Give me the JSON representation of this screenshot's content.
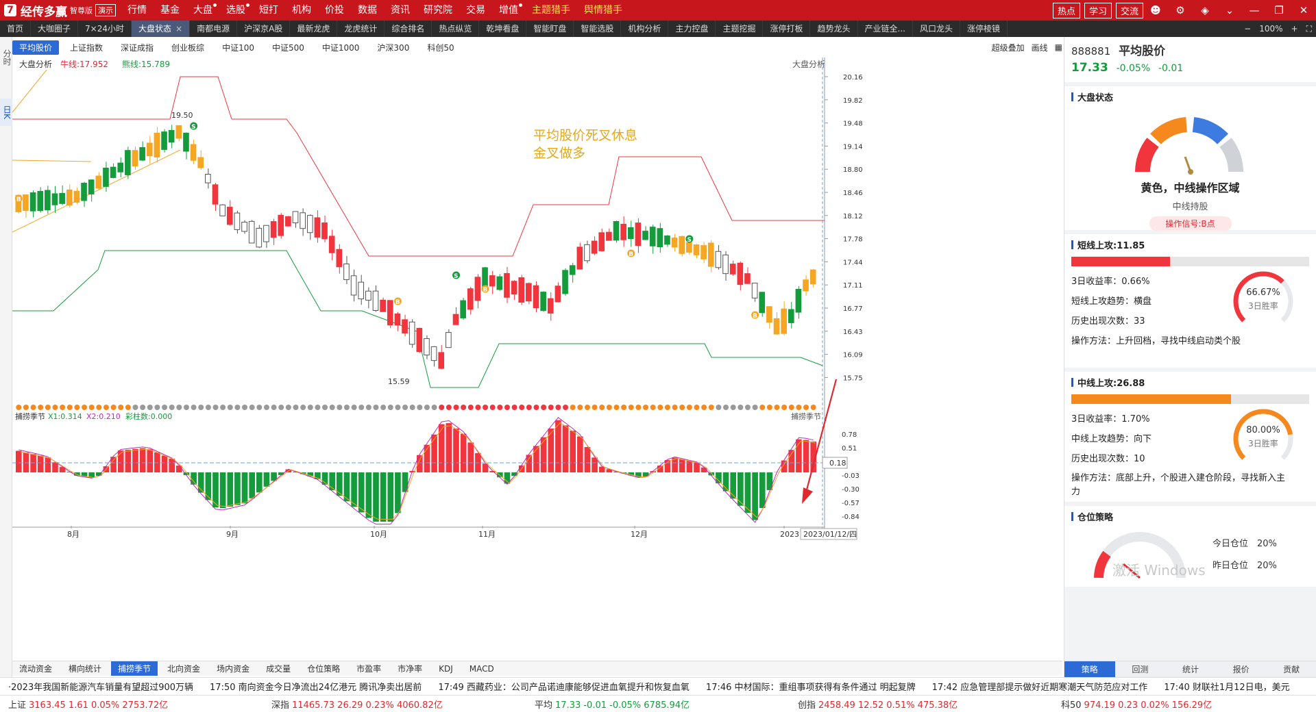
{
  "app": {
    "logo_text": "经传多赢",
    "edition": "智尊版",
    "demo_badge": "演示"
  },
  "menu": [
    "行情",
    "基金",
    "大盘",
    "选股",
    "短打",
    "机构",
    "价投",
    "数据",
    "资讯",
    "研究院",
    "交易",
    "增值"
  ],
  "menu_highlight": [
    "主题猎手",
    "舆情猎手"
  ],
  "top_right": [
    "热点",
    "学习",
    "交流"
  ],
  "tabs": [
    {
      "label": "首页"
    },
    {
      "label": "大咖圈子"
    },
    {
      "label": "7×24小时"
    },
    {
      "label": "大盘状态",
      "active": true
    },
    {
      "label": "南都电源"
    },
    {
      "label": "沪深京A股"
    },
    {
      "label": "最新龙虎"
    },
    {
      "label": "龙虎统计"
    },
    {
      "label": "综合排名"
    },
    {
      "label": "热点纵览"
    },
    {
      "label": "乾坤看盘"
    },
    {
      "label": "智能盯盘"
    },
    {
      "label": "智能选股"
    },
    {
      "label": "机构分析"
    },
    {
      "label": "主力控盘"
    },
    {
      "label": "主题挖掘"
    },
    {
      "label": "涨停打板"
    },
    {
      "label": "趋势龙头"
    },
    {
      "label": "产业链全..."
    },
    {
      "label": "风口龙头"
    },
    {
      "label": "涨停棱镜"
    }
  ],
  "zoom": "100%",
  "left_strip": [
    {
      "label": "分时"
    },
    {
      "label": "日K",
      "active": true
    }
  ],
  "index_tabs": [
    {
      "label": "平均股价",
      "active": true
    },
    {
      "label": "上证指数"
    },
    {
      "label": "深证成指"
    },
    {
      "label": "创业板综"
    },
    {
      "label": "中证100"
    },
    {
      "label": "中证500"
    },
    {
      "label": "中证1000"
    },
    {
      "label": "沪深300"
    },
    {
      "label": "科创50"
    }
  ],
  "index_tools": [
    "超级叠加",
    "画线"
  ],
  "main_chart": {
    "indicator_label": "大盘分析",
    "bull_line": "牛线:17.952",
    "bear_line": "熊线:15.789",
    "right_label": "大盘分析",
    "annotation_line1": "平均股价死叉休息",
    "annotation_line2": "金叉做多",
    "high_label": "19.50",
    "low_label": "15.59",
    "last_date": "2023/01/12/四",
    "y_ticks": [
      "20.16",
      "19.82",
      "19.48",
      "19.14",
      "18.80",
      "18.46",
      "18.12",
      "17.78",
      "17.44",
      "17.11",
      "16.77",
      "16.43",
      "16.09",
      "15.75"
    ]
  },
  "sub_chart": {
    "indicator_label": "捕捞季节",
    "x1": "X1:0.314",
    "x2": "X2:0.210",
    "bar_label": "彩柱数:0.000",
    "right_label": "捕捞季节",
    "current_value": "0.18",
    "y_ticks": [
      "0.78",
      "0.51",
      "-0.03",
      "-0.30",
      "-0.57",
      "-0.84"
    ]
  },
  "x_months": [
    "8月",
    "9月",
    "10月",
    "11月",
    "12月",
    "2023"
  ],
  "bottom_tabs": [
    {
      "label": "流动资金"
    },
    {
      "label": "横向统计"
    },
    {
      "label": "捕捞季节",
      "active": true
    },
    {
      "label": "北向资金"
    },
    {
      "label": "场内资金"
    },
    {
      "label": "成交量"
    },
    {
      "label": "仓位策略"
    },
    {
      "label": "市盈率"
    },
    {
      "label": "市净率"
    },
    {
      "label": "KDJ"
    },
    {
      "label": "MACD"
    }
  ],
  "news": [
    "·2023年我国新能源汽车销量有望超过900万辆",
    "17:50 南向资金今日净流出24亿港元 腾讯净卖出居前",
    "17:49 西藏药业：公司产品诺迪康能够促进血氧提升和恢复血氧",
    "17:46 中材国际：重组事项获得有条件通过 明起复牌",
    "17:42 应急管理部提示做好近期寒潮天气防范应对工作",
    "17:40 财联社1月12日电，美元"
  ],
  "indices": [
    {
      "name": "上证",
      "value": "3163.45 1.61 0.05% 2753.72亿"
    },
    {
      "name": "深指",
      "value": "11465.73 26.29 0.23% 4060.82亿"
    },
    {
      "name": "平均",
      "value": "17.33 -0.01 -0.05% 6785.94亿"
    },
    {
      "name": "创指",
      "value": "2458.49 12.52 0.51% 475.38亿"
    },
    {
      "name": "科50",
      "value": "974.19 0.23 0.02% 156.29亿"
    }
  ],
  "right_panel": {
    "code": "888881",
    "name": "平均股价",
    "price": "17.33",
    "change_pct": "-0.05%",
    "change": "-0.01",
    "market_status": {
      "title": "大盘状态",
      "status": "黄色，中线操作区域",
      "advice": "中线持股",
      "signal": "操作信号:B点"
    },
    "short_attack": {
      "title": "短线上攻:11.85",
      "level": 0.1185,
      "return_3d": "3日收益率：0.66%",
      "trend": "短线上攻趋势：横盘",
      "count": "历史出现次数：33",
      "method": "操作方法：上升回档，寻找中线启动类个股",
      "win_rate": "66.67%",
      "win_label": "3日胜率",
      "win_value": 0.6667,
      "color": "#f0353d"
    },
    "mid_attack": {
      "title": "中线上攻:26.88",
      "level": 0.2688,
      "return_3d": "3日收益率：1.70%",
      "trend": "中线上攻趋势：向下",
      "count": "历史出现次数：10",
      "method": "操作方法：底部上升，个股进入建仓阶段，寻找新入主力",
      "win_rate": "80.00%",
      "win_label": "3日胜率",
      "win_value": 0.8,
      "color": "#f5891e"
    },
    "position": {
      "title": "仓位策略",
      "today": "今日仓位　20%",
      "yesterday": "昨日仓位　20%"
    },
    "bottom_tabs": [
      {
        "label": "策略",
        "active": true
      },
      {
        "label": "回测"
      },
      {
        "label": "统计"
      },
      {
        "label": "报价"
      },
      {
        "label": "贡献"
      }
    ]
  },
  "watermark": "激活 Windows",
  "colors": {
    "up": "#f0353d",
    "down": "#149c3c",
    "orange": "#f5a623",
    "accent": "#2c6bd6",
    "brand": "#c8161d"
  }
}
